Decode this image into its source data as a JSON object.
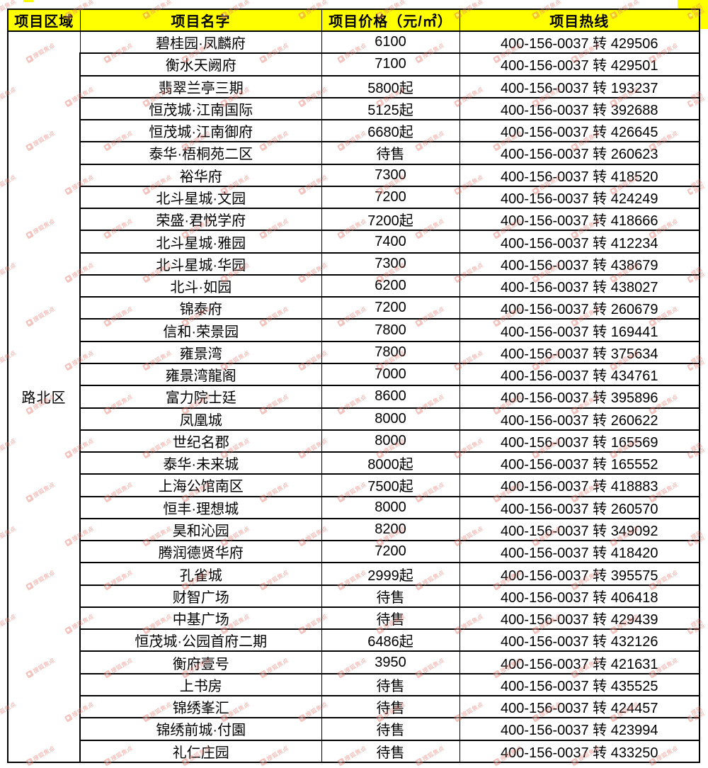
{
  "table": {
    "header": {
      "region": "项目区域",
      "name": "项目名字",
      "price": "项目价格（元/㎡）",
      "hotline": "项目热线",
      "background_color": "#ffff00"
    },
    "region_label": "路北区",
    "rows": [
      {
        "name": "碧桂园·凤麟府",
        "price": "6100",
        "hotline": "400-156-0037 转 429506"
      },
      {
        "name": "衡水天阙府",
        "price": "7100",
        "hotline": "400-156-0037 转 429501"
      },
      {
        "name": "翡翠兰亭三期",
        "price": "5800起",
        "hotline": "400-156-0037 转 193237"
      },
      {
        "name": "恒茂城·江南国际",
        "price": "5125起",
        "hotline": "400-156-0037 转 392688"
      },
      {
        "name": "恒茂城·江南御府",
        "price": "6680起",
        "hotline": "400-156-0037 转 426645"
      },
      {
        "name": "泰华·梧桐苑二区",
        "price": "待售",
        "hotline": "400-156-0037 转 260623"
      },
      {
        "name": "裕华府",
        "price": "7300",
        "hotline": "400-156-0037 转 418520"
      },
      {
        "name": "北斗星城·文园",
        "price": "7200",
        "hotline": "400-156-0037 转 424249"
      },
      {
        "name": "荣盛·君悦学府",
        "price": "7200起",
        "hotline": "400-156-0037 转 418666"
      },
      {
        "name": "北斗星城·雅园",
        "price": "7400",
        "hotline": "400-156-0037 转 412234"
      },
      {
        "name": "北斗星城·华园",
        "price": "7300",
        "hotline": "400-156-0037 转 438679"
      },
      {
        "name": "北斗·如园",
        "price": "6200",
        "hotline": "400-156-0037 转 438027"
      },
      {
        "name": "锦泰府",
        "price": "7200",
        "hotline": "400-156-0037 转 260679"
      },
      {
        "name": "信和·荣景园",
        "price": "7800",
        "hotline": "400-156-0037 转 169441"
      },
      {
        "name": "雍景湾",
        "price": "7800",
        "hotline": "400-156-0037 转 375634"
      },
      {
        "name": "雍景湾龍阁",
        "price": "7000",
        "hotline": "400-156-0037 转 434761"
      },
      {
        "name": "富力院士廷",
        "price": "8600",
        "hotline": "400-156-0037 转 395896"
      },
      {
        "name": "凤凰城",
        "price": "8000",
        "hotline": "400-156-0037 转 260622"
      },
      {
        "name": "世纪名郡",
        "price": "8000",
        "hotline": "400-156-0037 转 165569"
      },
      {
        "name": "泰华·未来城",
        "price": "8000起",
        "hotline": "400-156-0037 转 165552"
      },
      {
        "name": "上海公馆南区",
        "price": "7500起",
        "hotline": "400-156-0037 转 418883"
      },
      {
        "name": "恒丰·理想城",
        "price": "8000",
        "hotline": "400-156-0037 转 260570"
      },
      {
        "name": "昊和沁园",
        "price": "8200",
        "hotline": "400-156-0037 转 349092"
      },
      {
        "name": "腾润德贤华府",
        "price": "7200",
        "hotline": "400-156-0037 转 418420"
      },
      {
        "name": "孔雀城",
        "price": "2999起",
        "hotline": "400-156-0037 转 395575"
      },
      {
        "name": "财智广场",
        "price": "待售",
        "hotline": "400-156-0037 转 406418"
      },
      {
        "name": "中基广场",
        "price": "待售",
        "hotline": "400-156-0037 转 429439"
      },
      {
        "name": "恒茂城·公园首府二期",
        "price": "6486起",
        "hotline": "400-156-0037 转 432126"
      },
      {
        "name": "衡府壹号",
        "price": "3950",
        "hotline": "400-156-0037 转 421631"
      },
      {
        "name": "上书房",
        "price": "待售",
        "hotline": "400-156-0037 转 435525"
      },
      {
        "name": "锦绣峯汇",
        "price": "待售",
        "hotline": "400-156-0037 转 424457"
      },
      {
        "name": "锦绣前城·付園",
        "price": "待售",
        "hotline": "400-156-0037 转 423994"
      },
      {
        "name": "礼仁庄园",
        "price": "待售",
        "hotline": "400-156-0037 转 433250"
      }
    ]
  },
  "watermark": {
    "text": "搜狐焦点",
    "color": "#e4766b"
  },
  "colors": {
    "header_background": "#ffff00",
    "border": "#000000",
    "text": "#000000",
    "page_background": "#ffffff"
  }
}
